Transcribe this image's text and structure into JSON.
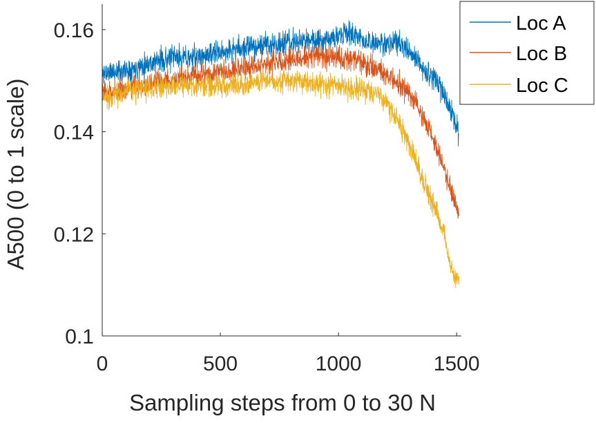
{
  "chart_data": {
    "type": "line",
    "title": "",
    "xlabel": "Sampling steps from 0 to 30 N",
    "ylabel": "A500 (0 to 1 scale)",
    "xlim": [
      0,
      1520
    ],
    "ylim": [
      0.1,
      0.165
    ],
    "x_data_max": 1510,
    "xticks": [
      0,
      500,
      1000,
      1500
    ],
    "xtick_labels": [
      "0",
      "500",
      "1000",
      "1500"
    ],
    "yticks": [
      0.1,
      0.12,
      0.14,
      0.16
    ],
    "ytick_labels": [
      "0.1",
      "0.12",
      "0.14",
      "0.16"
    ],
    "grid": false,
    "legend_position": "top-right",
    "series": [
      {
        "name": "Loc A",
        "color": "#0072BD",
        "noise": 0.0035,
        "seed": 11,
        "x": [
          0,
          100,
          200,
          300,
          400,
          500,
          600,
          700,
          800,
          900,
          1000,
          1050,
          1100,
          1150,
          1200,
          1250,
          1300,
          1350,
          1400,
          1450,
          1480,
          1510
        ],
        "y": [
          0.1515,
          0.152,
          0.1535,
          0.1545,
          0.1545,
          0.1555,
          0.1565,
          0.157,
          0.1575,
          0.158,
          0.1585,
          0.1595,
          0.158,
          0.157,
          0.1575,
          0.1575,
          0.1555,
          0.153,
          0.1505,
          0.1475,
          0.1435,
          0.1395
        ]
      },
      {
        "name": "Loc B",
        "color": "#D95319",
        "noise": 0.0033,
        "seed": 23,
        "x": [
          0,
          100,
          200,
          300,
          400,
          500,
          600,
          700,
          800,
          900,
          1000,
          1050,
          1100,
          1150,
          1200,
          1250,
          1300,
          1350,
          1400,
          1450,
          1480,
          1510
        ],
        "y": [
          0.1475,
          0.1485,
          0.1495,
          0.15,
          0.151,
          0.152,
          0.1525,
          0.1535,
          0.154,
          0.155,
          0.1545,
          0.1545,
          0.1535,
          0.1525,
          0.151,
          0.1495,
          0.1475,
          0.1435,
          0.1385,
          0.1325,
          0.128,
          0.1235
        ]
      },
      {
        "name": "Loc C",
        "color": "#EDB120",
        "noise": 0.0034,
        "seed": 37,
        "x": [
          0,
          100,
          200,
          300,
          400,
          500,
          600,
          700,
          800,
          900,
          1000,
          1050,
          1100,
          1150,
          1200,
          1250,
          1300,
          1350,
          1400,
          1450,
          1480,
          1510
        ],
        "y": [
          0.1465,
          0.148,
          0.1485,
          0.149,
          0.149,
          0.149,
          0.1495,
          0.15,
          0.15,
          0.1495,
          0.149,
          0.1485,
          0.148,
          0.1475,
          0.146,
          0.1425,
          0.1375,
          0.1315,
          0.126,
          0.1195,
          0.1125,
          0.1105
        ]
      }
    ]
  }
}
